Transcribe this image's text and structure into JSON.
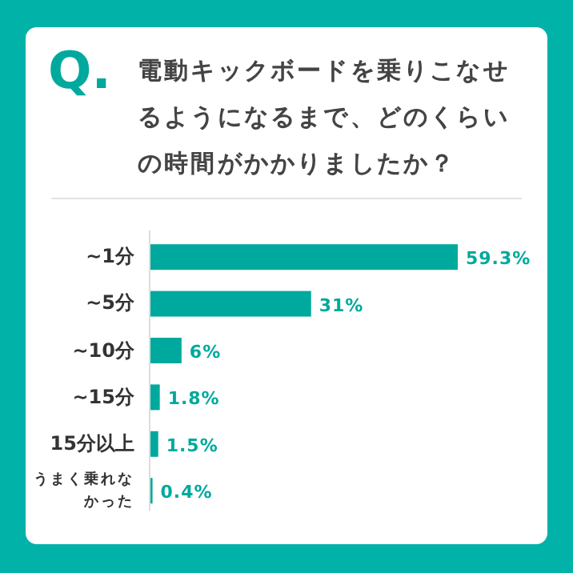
{
  "chart_data": {
    "type": "bar",
    "orientation": "horizontal",
    "title": "電動キックボードを乗りこなせるようになるまで、どのくらいの時間がかかりましたか？",
    "annotations": [
      "Q."
    ],
    "categories": [
      "~1分",
      "~5分",
      "~10分",
      "~15分",
      "15分以上",
      "うまく乗れなかった"
    ],
    "values": [
      59.3,
      31,
      6,
      1.8,
      1.5,
      0.4
    ],
    "value_labels": [
      "59.3%",
      "31%",
      "6%",
      "1.8%",
      "1.5%",
      "0.4%"
    ],
    "color": "#00a99d"
  }
}
